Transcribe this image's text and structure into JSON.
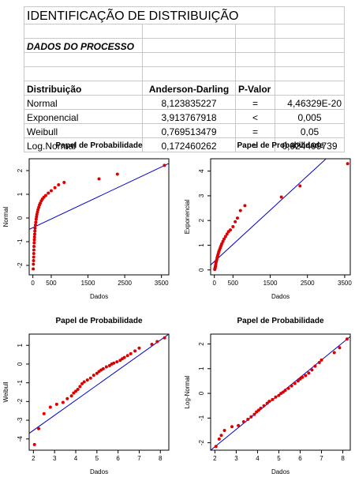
{
  "sheet": {
    "title": "IDENTIFICAÇÃO DE DISTRIBUIÇÃO",
    "subtitle": "DADOS DO PROCESSO",
    "headers": [
      "Distribuição",
      "Anderson-Darling",
      "P-Valor",
      ""
    ],
    "rows": [
      {
        "dist": "Normal",
        "ad": "8,123835227",
        "op": "=",
        "p": "4,46329E-20"
      },
      {
        "dist": "Exponencial",
        "ad": "3,913767918",
        "op": "<",
        "p": "0,005"
      },
      {
        "dist": "Weibull",
        "ad": "0,769513479",
        "op": "=",
        "p": "0,05"
      },
      {
        "dist": "Log.Normal",
        "ad": "0,172460262",
        "op": "=",
        "p": "0,924499739"
      }
    ]
  },
  "colors": {
    "points": "#dd0000",
    "line": "#0000cc"
  },
  "chart_data": [
    {
      "type": "scatter",
      "title": "Papel de Probabilidade",
      "xlabel": "Dados",
      "ylabel": "Normal",
      "xlim": [
        -100,
        3700
      ],
      "ylim": [
        -2.4,
        2.5
      ],
      "xticks": [
        0,
        500,
        1500,
        2500,
        3500
      ],
      "xticklabels": [
        "0",
        "500",
        "1500",
        "2500",
        "3500"
      ],
      "yticks": [
        -2,
        -1,
        0,
        1,
        2
      ],
      "line": [
        [
          -100,
          -0.48
        ],
        [
          3700,
          2.3
        ]
      ],
      "points": [
        [
          10,
          -2.15
        ],
        [
          15,
          -1.95
        ],
        [
          20,
          -1.8
        ],
        [
          22,
          -1.65
        ],
        [
          25,
          -1.5
        ],
        [
          28,
          -1.35
        ],
        [
          30,
          -1.2
        ],
        [
          35,
          -1.05
        ],
        [
          40,
          -0.92
        ],
        [
          45,
          -0.8
        ],
        [
          50,
          -0.68
        ],
        [
          55,
          -0.55
        ],
        [
          60,
          -0.43
        ],
        [
          70,
          -0.3
        ],
        [
          80,
          -0.18
        ],
        [
          90,
          -0.05
        ],
        [
          100,
          0.05
        ],
        [
          110,
          0.15
        ],
        [
          125,
          0.25
        ],
        [
          140,
          0.35
        ],
        [
          160,
          0.45
        ],
        [
          180,
          0.55
        ],
        [
          200,
          0.62
        ],
        [
          230,
          0.72
        ],
        [
          260,
          0.8
        ],
        [
          300,
          0.88
        ],
        [
          350,
          0.95
        ],
        [
          420,
          1.05
        ],
        [
          500,
          1.15
        ],
        [
          600,
          1.28
        ],
        [
          700,
          1.4
        ],
        [
          850,
          1.5
        ],
        [
          1800,
          1.65
        ],
        [
          2300,
          1.85
        ],
        [
          3580,
          2.22
        ]
      ]
    },
    {
      "type": "scatter",
      "title": "Papel de Probabilidade",
      "xlabel": "Dados",
      "ylabel": "Exponencial",
      "xlim": [
        -100,
        3650
      ],
      "ylim": [
        -0.2,
        4.5
      ],
      "xticks": [
        0,
        500,
        1500,
        2500,
        3500
      ],
      "xticklabels": [
        "0",
        "500",
        "1500",
        "2500",
        "3500"
      ],
      "yticks": [
        0,
        1,
        2,
        3,
        4
      ],
      "line": [
        [
          -100,
          0.2
        ],
        [
          3650,
          5.4
        ]
      ],
      "points": [
        [
          10,
          0.02
        ],
        [
          15,
          0.05
        ],
        [
          20,
          0.08
        ],
        [
          25,
          0.12
        ],
        [
          30,
          0.15
        ],
        [
          35,
          0.2
        ],
        [
          40,
          0.25
        ],
        [
          45,
          0.3
        ],
        [
          55,
          0.36
        ],
        [
          65,
          0.42
        ],
        [
          75,
          0.5
        ],
        [
          90,
          0.58
        ],
        [
          105,
          0.66
        ],
        [
          120,
          0.74
        ],
        [
          140,
          0.82
        ],
        [
          160,
          0.9
        ],
        [
          180,
          0.98
        ],
        [
          200,
          1.06
        ],
        [
          230,
          1.15
        ],
        [
          260,
          1.25
        ],
        [
          300,
          1.35
        ],
        [
          340,
          1.45
        ],
        [
          380,
          1.55
        ],
        [
          430,
          1.62
        ],
        [
          500,
          1.75
        ],
        [
          560,
          1.95
        ],
        [
          620,
          2.1
        ],
        [
          700,
          2.4
        ],
        [
          820,
          2.6
        ],
        [
          1800,
          2.95
        ],
        [
          2300,
          3.4
        ],
        [
          3580,
          4.3
        ]
      ]
    },
    {
      "type": "scatter",
      "title": "Papel de Probabilidade",
      "xlabel": "Dados",
      "ylabel": "Weibull",
      "xlim": [
        1.8,
        8.4
      ],
      "ylim": [
        -4.6,
        1.6
      ],
      "xticks": [
        2,
        3,
        4,
        5,
        6,
        7,
        8
      ],
      "xticklabels": [
        "2",
        "3",
        "4",
        "5",
        "6",
        "7",
        "8"
      ],
      "yticks": [
        -4,
        -3,
        -2,
        -1,
        0,
        1
      ],
      "line": [
        [
          1.8,
          -3.7
        ],
        [
          8.4,
          1.6
        ]
      ],
      "points": [
        [
          2.05,
          -4.3
        ],
        [
          2.25,
          -3.45
        ],
        [
          2.5,
          -2.65
        ],
        [
          2.8,
          -2.3
        ],
        [
          3.1,
          -2.15
        ],
        [
          3.4,
          -2.05
        ],
        [
          3.6,
          -1.85
        ],
        [
          3.8,
          -1.7
        ],
        [
          3.9,
          -1.55
        ],
        [
          4.0,
          -1.45
        ],
        [
          4.1,
          -1.35
        ],
        [
          4.2,
          -1.2
        ],
        [
          4.3,
          -1.05
        ],
        [
          4.4,
          -0.95
        ],
        [
          4.55,
          -0.85
        ],
        [
          4.7,
          -0.75
        ],
        [
          4.85,
          -0.6
        ],
        [
          5.0,
          -0.5
        ],
        [
          5.1,
          -0.4
        ],
        [
          5.2,
          -0.32
        ],
        [
          5.3,
          -0.25
        ],
        [
          5.45,
          -0.15
        ],
        [
          5.6,
          -0.08
        ],
        [
          5.7,
          0.0
        ],
        [
          5.8,
          0.05
        ],
        [
          5.95,
          0.12
        ],
        [
          6.1,
          0.2
        ],
        [
          6.2,
          0.28
        ],
        [
          6.3,
          0.35
        ],
        [
          6.45,
          0.45
        ],
        [
          6.6,
          0.55
        ],
        [
          6.8,
          0.7
        ],
        [
          7.0,
          0.85
        ],
        [
          7.6,
          1.05
        ],
        [
          7.85,
          1.2
        ],
        [
          8.2,
          1.4
        ]
      ]
    },
    {
      "type": "scatter",
      "title": "Papel de Probabilidade",
      "xlabel": "Dados",
      "ylabel": "Log-Normal",
      "xlim": [
        1.8,
        8.35
      ],
      "ylim": [
        -2.3,
        2.4
      ],
      "xticks": [
        2,
        3,
        4,
        5,
        6,
        7,
        8
      ],
      "xticklabels": [
        "2",
        "3",
        "4",
        "5",
        "6",
        "7",
        "8"
      ],
      "yticks": [
        -2,
        -1,
        0,
        1,
        2
      ],
      "line": [
        [
          1.8,
          -2.3
        ],
        [
          8.35,
          2.3
        ]
      ],
      "points": [
        [
          2.05,
          -2.15
        ],
        [
          2.2,
          -1.85
        ],
        [
          2.3,
          -1.7
        ],
        [
          2.45,
          -1.5
        ],
        [
          2.8,
          -1.35
        ],
        [
          3.1,
          -1.3
        ],
        [
          3.35,
          -1.15
        ],
        [
          3.55,
          -1.05
        ],
        [
          3.7,
          -0.95
        ],
        [
          3.85,
          -0.85
        ],
        [
          3.95,
          -0.75
        ],
        [
          4.05,
          -0.68
        ],
        [
          4.15,
          -0.6
        ],
        [
          4.3,
          -0.5
        ],
        [
          4.45,
          -0.4
        ],
        [
          4.55,
          -0.32
        ],
        [
          4.7,
          -0.25
        ],
        [
          4.85,
          -0.15
        ],
        [
          5.0,
          -0.08
        ],
        [
          5.1,
          0.0
        ],
        [
          5.2,
          0.05
        ],
        [
          5.3,
          0.12
        ],
        [
          5.45,
          0.2
        ],
        [
          5.6,
          0.3
        ],
        [
          5.75,
          0.4
        ],
        [
          5.9,
          0.5
        ],
        [
          6.0,
          0.58
        ],
        [
          6.1,
          0.65
        ],
        [
          6.25,
          0.72
        ],
        [
          6.4,
          0.82
        ],
        [
          6.55,
          0.95
        ],
        [
          6.7,
          1.1
        ],
        [
          6.9,
          1.25
        ],
        [
          7.0,
          1.35
        ],
        [
          7.6,
          1.65
        ],
        [
          7.85,
          1.85
        ],
        [
          8.2,
          2.2
        ]
      ]
    }
  ]
}
